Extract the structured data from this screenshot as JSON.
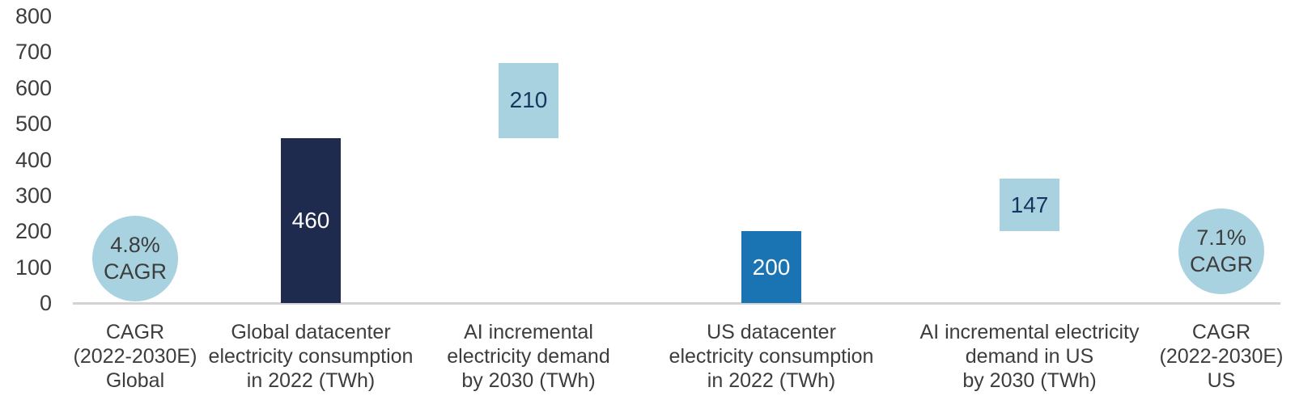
{
  "page": {
    "background": "#ffffff"
  },
  "chart_data": {
    "type": "bar",
    "title": "",
    "xlabel": "",
    "ylabel": "",
    "ylim": [
      0,
      800
    ],
    "yticks": [
      0,
      100,
      200,
      300,
      400,
      500,
      600,
      700,
      800
    ],
    "grid": false,
    "legend": "none",
    "axis_line_color": "#d2d2d2",
    "tick_label_color": "#3d3d3d",
    "category_label_color": "#3d3d3d",
    "columns": [
      {
        "kind": "circle",
        "name": "cagr-global",
        "category": "CAGR\n(2022-2030E)\nGlobal",
        "text": "4.8%\nCAGR",
        "fill": "#a9d2e1",
        "text_color": "#3d3d3d"
      },
      {
        "kind": "bar",
        "name": "global-datacenter-2022",
        "category": "Global datacenter\nelectricity consumption\nin 2022 (TWh)",
        "value": 460,
        "base": 0,
        "label": "460",
        "fill": "#1e2b4e",
        "text_color": "#ffffff"
      },
      {
        "kind": "bar",
        "name": "ai-incremental-global-2030",
        "category": "AI incremental\nelectricity demand\nby 2030 (TWh)",
        "value": 210,
        "base": 460,
        "label": "210",
        "fill": "#a9d2e1",
        "text_color": "#17365f"
      },
      {
        "kind": "bar",
        "name": "us-datacenter-2022",
        "category": "US datacenter\nelectricity consumption\nin 2022 (TWh)",
        "value": 200,
        "base": 0,
        "label": "200",
        "fill": "#1a73b2",
        "text_color": "#ffffff"
      },
      {
        "kind": "bar",
        "name": "ai-incremental-us-2030",
        "category": "AI incremental electricity\ndemand in US\nby 2030 (TWh)",
        "value": 147,
        "base": 200,
        "label": "147",
        "fill": "#a9d2e1",
        "text_color": "#17365f"
      },
      {
        "kind": "circle",
        "name": "cagr-us",
        "category": "CAGR\n(2022-2030E)\nUS",
        "text": "7.1%\nCAGR",
        "fill": "#a9d2e1",
        "text_color": "#3d3d3d"
      }
    ]
  }
}
